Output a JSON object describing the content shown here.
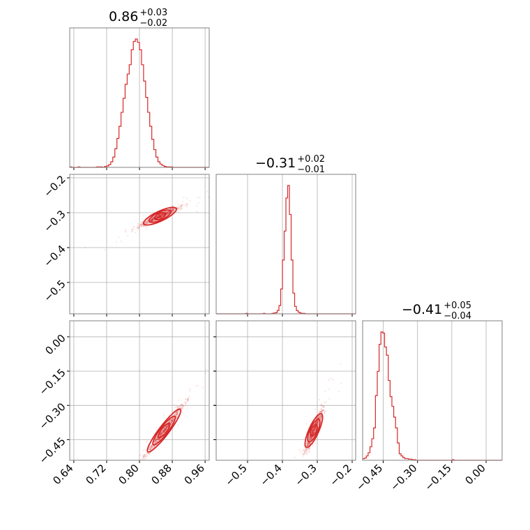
{
  "chart_data": {
    "type": "corner",
    "color": "#d62728",
    "grid": true,
    "parameters": [
      {
        "median": "0.86",
        "plus": "+0.03",
        "minus": "−0.02",
        "range": [
          0.63,
          0.97
        ],
        "ticks": [
          0.64,
          0.72,
          0.8,
          0.88,
          0.96
        ],
        "tick_labels": [
          "0.64",
          "0.72",
          "0.80",
          "0.88",
          "0.96"
        ],
        "hist": {
          "edges_start": 0.63,
          "bin_width": 0.005,
          "counts": [
            1,
            0,
            0,
            0,
            1,
            0,
            0,
            0,
            0,
            0,
            0,
            0,
            0,
            1,
            1,
            1,
            0,
            2,
            3,
            6,
            12,
            22,
            40,
            62,
            88,
            118,
            148,
            178,
            200,
            220,
            252,
            270,
            275,
            268,
            252,
            220,
            185,
            150,
            118,
            88,
            60,
            38,
            22,
            12,
            7,
            4,
            2,
            1,
            1,
            1,
            0,
            0,
            0,
            0,
            0,
            0,
            0,
            0,
            0,
            0,
            0,
            0,
            0,
            0,
            0,
            0,
            0,
            0
          ]
        }
      },
      {
        "median": "−0.31",
        "plus": "+0.02",
        "minus": "−0.01",
        "range": [
          -0.59,
          -0.19
        ],
        "ticks": [
          -0.5,
          -0.4,
          -0.3,
          -0.2
        ],
        "tick_labels": [
          "−0.5",
          "−0.4",
          "−0.3",
          "−0.2"
        ],
        "hist": {
          "edges_start": -0.59,
          "bin_width": 0.005,
          "counts": [
            0,
            0,
            0,
            0,
            0,
            0,
            0,
            0,
            0,
            0,
            0,
            0,
            0,
            0,
            0,
            0,
            0,
            1,
            0,
            0,
            0,
            0,
            0,
            0,
            0,
            0,
            0,
            1,
            0,
            0,
            0,
            0,
            1,
            2,
            3,
            8,
            20,
            60,
            130,
            200,
            280,
            310,
            240,
            130,
            50,
            18,
            8,
            4,
            2,
            1,
            1,
            0,
            0,
            0,
            0,
            0,
            0,
            0,
            0,
            0,
            0,
            0,
            0,
            0,
            0,
            0,
            0,
            0,
            0,
            0,
            0,
            0,
            0,
            0,
            0,
            0,
            0,
            0,
            0,
            0
          ]
        }
      },
      {
        "median": "−0.41",
        "plus": "+0.05",
        "minus": "−0.04",
        "range": [
          -0.54,
          0.07
        ],
        "ticks": [
          -0.45,
          -0.3,
          -0.15,
          0.0
        ],
        "tick_labels": [
          "−0.45",
          "−0.30",
          "−0.15",
          "0.00"
        ],
        "hist": {
          "edges_start": -0.54,
          "bin_width": 0.008,
          "counts": [
            3,
            4,
            8,
            14,
            25,
            40,
            60,
            120,
            165,
            215,
            238,
            236,
            210,
            195,
            148,
            118,
            100,
            80,
            60,
            32,
            12,
            8,
            5,
            3,
            3,
            2,
            2,
            1,
            1,
            0,
            0,
            0,
            0,
            0,
            0,
            0,
            0,
            0,
            0,
            0,
            0,
            0,
            0,
            0,
            0,
            0,
            0,
            0,
            0,
            1,
            0,
            0,
            0,
            0,
            0,
            0,
            0,
            0,
            0,
            0,
            0,
            0,
            0,
            0,
            0,
            0,
            0,
            0,
            0,
            0,
            0,
            0,
            0,
            0,
            0,
            0
          ]
        }
      }
    ],
    "correlations": [
      {
        "pair": [
          0,
          1
        ],
        "center": [
          0.85,
          -0.31
        ],
        "slope": 0.55,
        "spread_x": 0.022,
        "noise_y": 0.004
      },
      {
        "pair": [
          0,
          2
        ],
        "center": [
          0.86,
          -0.41
        ],
        "slope": 2.35,
        "spread_x": 0.022,
        "noise_y": 0.01
      },
      {
        "pair": [
          1,
          2
        ],
        "center": [
          -0.31,
          -0.41
        ],
        "slope": 3.4,
        "spread_x": 0.012,
        "noise_y": 0.015
      }
    ]
  }
}
